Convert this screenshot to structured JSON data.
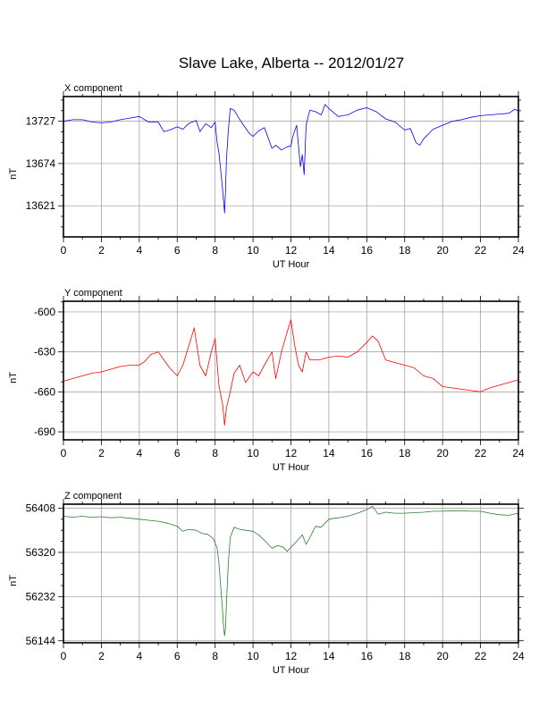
{
  "title": "Slave Lake, Alberta -- 2012/01/27",
  "chart_data": [
    {
      "type": "line",
      "panel_label": "X component",
      "xlabel": "UT Hour",
      "ylabel": "nT",
      "xlim": [
        0,
        24
      ],
      "ylim": [
        13582,
        13758
      ],
      "xticks": [
        0,
        2,
        4,
        6,
        8,
        10,
        12,
        14,
        16,
        18,
        20,
        22,
        24
      ],
      "yticks": [
        13621,
        13674,
        13727
      ],
      "grid": true,
      "color": "#0000ff",
      "series": [
        {
          "x": [
            0,
            0.5,
            1,
            1.5,
            2,
            2.5,
            3,
            3.5,
            4,
            4.5,
            5,
            5.3,
            5.6,
            6,
            6.3,
            6.6,
            7,
            7.2,
            7.5,
            7.8,
            8,
            8.1,
            8.2,
            8.3,
            8.4,
            8.45,
            8.5,
            8.55,
            8.6,
            8.7,
            8.8,
            9,
            9.2,
            9.5,
            9.8,
            10,
            10.3,
            10.6,
            11,
            11.2,
            11.5,
            11.8,
            12,
            12.1,
            12.3,
            12.5,
            12.6,
            12.7,
            12.8,
            12.9,
            13,
            13.3,
            13.6,
            13.8,
            14,
            14.5,
            15,
            15.5,
            16,
            16.5,
            17,
            17.5,
            18,
            18.3,
            18.6,
            18.8,
            19,
            19.5,
            20,
            20.5,
            21,
            21.5,
            22,
            22.5,
            23,
            23.5,
            23.8,
            24
          ],
          "y": [
            13727,
            13729,
            13729,
            13726,
            13725,
            13726,
            13729,
            13731,
            13733,
            13726,
            13726,
            13714,
            13716,
            13720,
            13717,
            13724,
            13728,
            13714,
            13724,
            13719,
            13726,
            13701,
            13688,
            13665,
            13640,
            13626,
            13612,
            13640,
            13680,
            13716,
            13743,
            13741,
            13733,
            13722,
            13712,
            13708,
            13715,
            13719,
            13693,
            13697,
            13691,
            13695,
            13696,
            13708,
            13722,
            13670,
            13685,
            13660,
            13722,
            13732,
            13741,
            13739,
            13735,
            13748,
            13743,
            13733,
            13735,
            13741,
            13744,
            13739,
            13730,
            13726,
            13716,
            13718,
            13700,
            13697,
            13705,
            13717,
            13722,
            13727,
            13729,
            13732,
            13734,
            13735,
            13736,
            13737,
            13742,
            13740
          ]
        }
      ]
    },
    {
      "type": "line",
      "panel_label": "Y component",
      "xlabel": "UT Hour",
      "ylabel": "nT",
      "xlim": [
        0,
        24
      ],
      "ylim": [
        -696,
        -592
      ],
      "xticks": [
        0,
        2,
        4,
        6,
        8,
        10,
        12,
        14,
        16,
        18,
        20,
        22,
        24
      ],
      "yticks": [
        -690,
        -660,
        -630,
        -600
      ],
      "grid": true,
      "color": "#ff0000",
      "series": [
        {
          "x": [
            0,
            0.5,
            1,
            1.5,
            2,
            2.5,
            3,
            3.5,
            4,
            4.3,
            4.6,
            5,
            5.3,
            5.6,
            6,
            6.3,
            6.6,
            6.9,
            7.2,
            7.5,
            7.8,
            8,
            8.2,
            8.4,
            8.5,
            8.6,
            8.8,
            9,
            9.3,
            9.6,
            10,
            10.3,
            10.6,
            11,
            11.2,
            11.5,
            11.8,
            12,
            12.2,
            12.4,
            12.6,
            12.8,
            13,
            13.5,
            14,
            14.5,
            15,
            15.5,
            16,
            16.3,
            16.6,
            17,
            17.5,
            18,
            18.5,
            19,
            19.5,
            20,
            20.5,
            21,
            21.5,
            22,
            22.5,
            23,
            23.5,
            24
          ],
          "y": [
            -652,
            -650,
            -648,
            -646,
            -645,
            -643,
            -641,
            -640,
            -640,
            -637,
            -632,
            -630,
            -636,
            -642,
            -648,
            -640,
            -626,
            -612,
            -640,
            -648,
            -630,
            -620,
            -655,
            -670,
            -685,
            -672,
            -660,
            -646,
            -640,
            -653,
            -645,
            -648,
            -640,
            -630,
            -650,
            -630,
            -615,
            -606,
            -625,
            -640,
            -645,
            -630,
            -636,
            -636,
            -634,
            -633,
            -634,
            -630,
            -623,
            -618,
            -622,
            -636,
            -638,
            -640,
            -642,
            -648,
            -650,
            -656,
            -657,
            -658,
            -659,
            -660,
            -657,
            -655,
            -653,
            -651
          ]
        }
      ]
    },
    {
      "type": "line",
      "panel_label": "Z component",
      "xlabel": "UT Hour",
      "ylabel": "nT",
      "xlim": [
        0,
        24
      ],
      "ylim": [
        56140,
        56416
      ],
      "xticks": [
        0,
        2,
        4,
        6,
        8,
        10,
        12,
        14,
        16,
        18,
        20,
        22,
        24
      ],
      "yticks": [
        56144,
        56232,
        56320,
        56408
      ],
      "grid": true,
      "color": "#2e7d32",
      "series": [
        {
          "x": [
            0,
            0.5,
            1,
            1.5,
            2,
            2.5,
            3,
            3.5,
            4,
            4.5,
            5,
            5.5,
            6,
            6.3,
            6.6,
            7,
            7.3,
            7.6,
            7.9,
            8.1,
            8.2,
            8.3,
            8.4,
            8.45,
            8.5,
            8.55,
            8.6,
            8.7,
            8.8,
            9,
            9.3,
            9.6,
            10,
            10.3,
            10.6,
            11,
            11.3,
            11.6,
            11.8,
            12,
            12.3,
            12.6,
            12.8,
            13,
            13.3,
            13.6,
            14,
            14.5,
            15,
            15.5,
            16,
            16.3,
            16.6,
            17,
            17.5,
            18,
            18.5,
            19,
            19.5,
            20,
            20.5,
            21,
            21.5,
            22,
            22.5,
            23,
            23.5,
            24
          ],
          "y": [
            56392,
            56390,
            56392,
            56390,
            56391,
            56389,
            56390,
            56388,
            56386,
            56384,
            56382,
            56378,
            56372,
            56362,
            56366,
            56364,
            56358,
            56356,
            56348,
            56330,
            56300,
            56250,
            56200,
            56170,
            56154,
            56170,
            56220,
            56300,
            56350,
            56370,
            56366,
            56364,
            56362,
            56355,
            56344,
            56328,
            56334,
            56330,
            56322,
            56330,
            56342,
            56355,
            56336,
            56350,
            56372,
            56370,
            56386,
            56389,
            56392,
            56398,
            56405,
            56412,
            56396,
            56400,
            56398,
            56398,
            56399,
            56400,
            56402,
            56402,
            56403,
            56403,
            56402,
            56402,
            56398,
            56395,
            56394,
            56398
          ]
        }
      ]
    }
  ]
}
